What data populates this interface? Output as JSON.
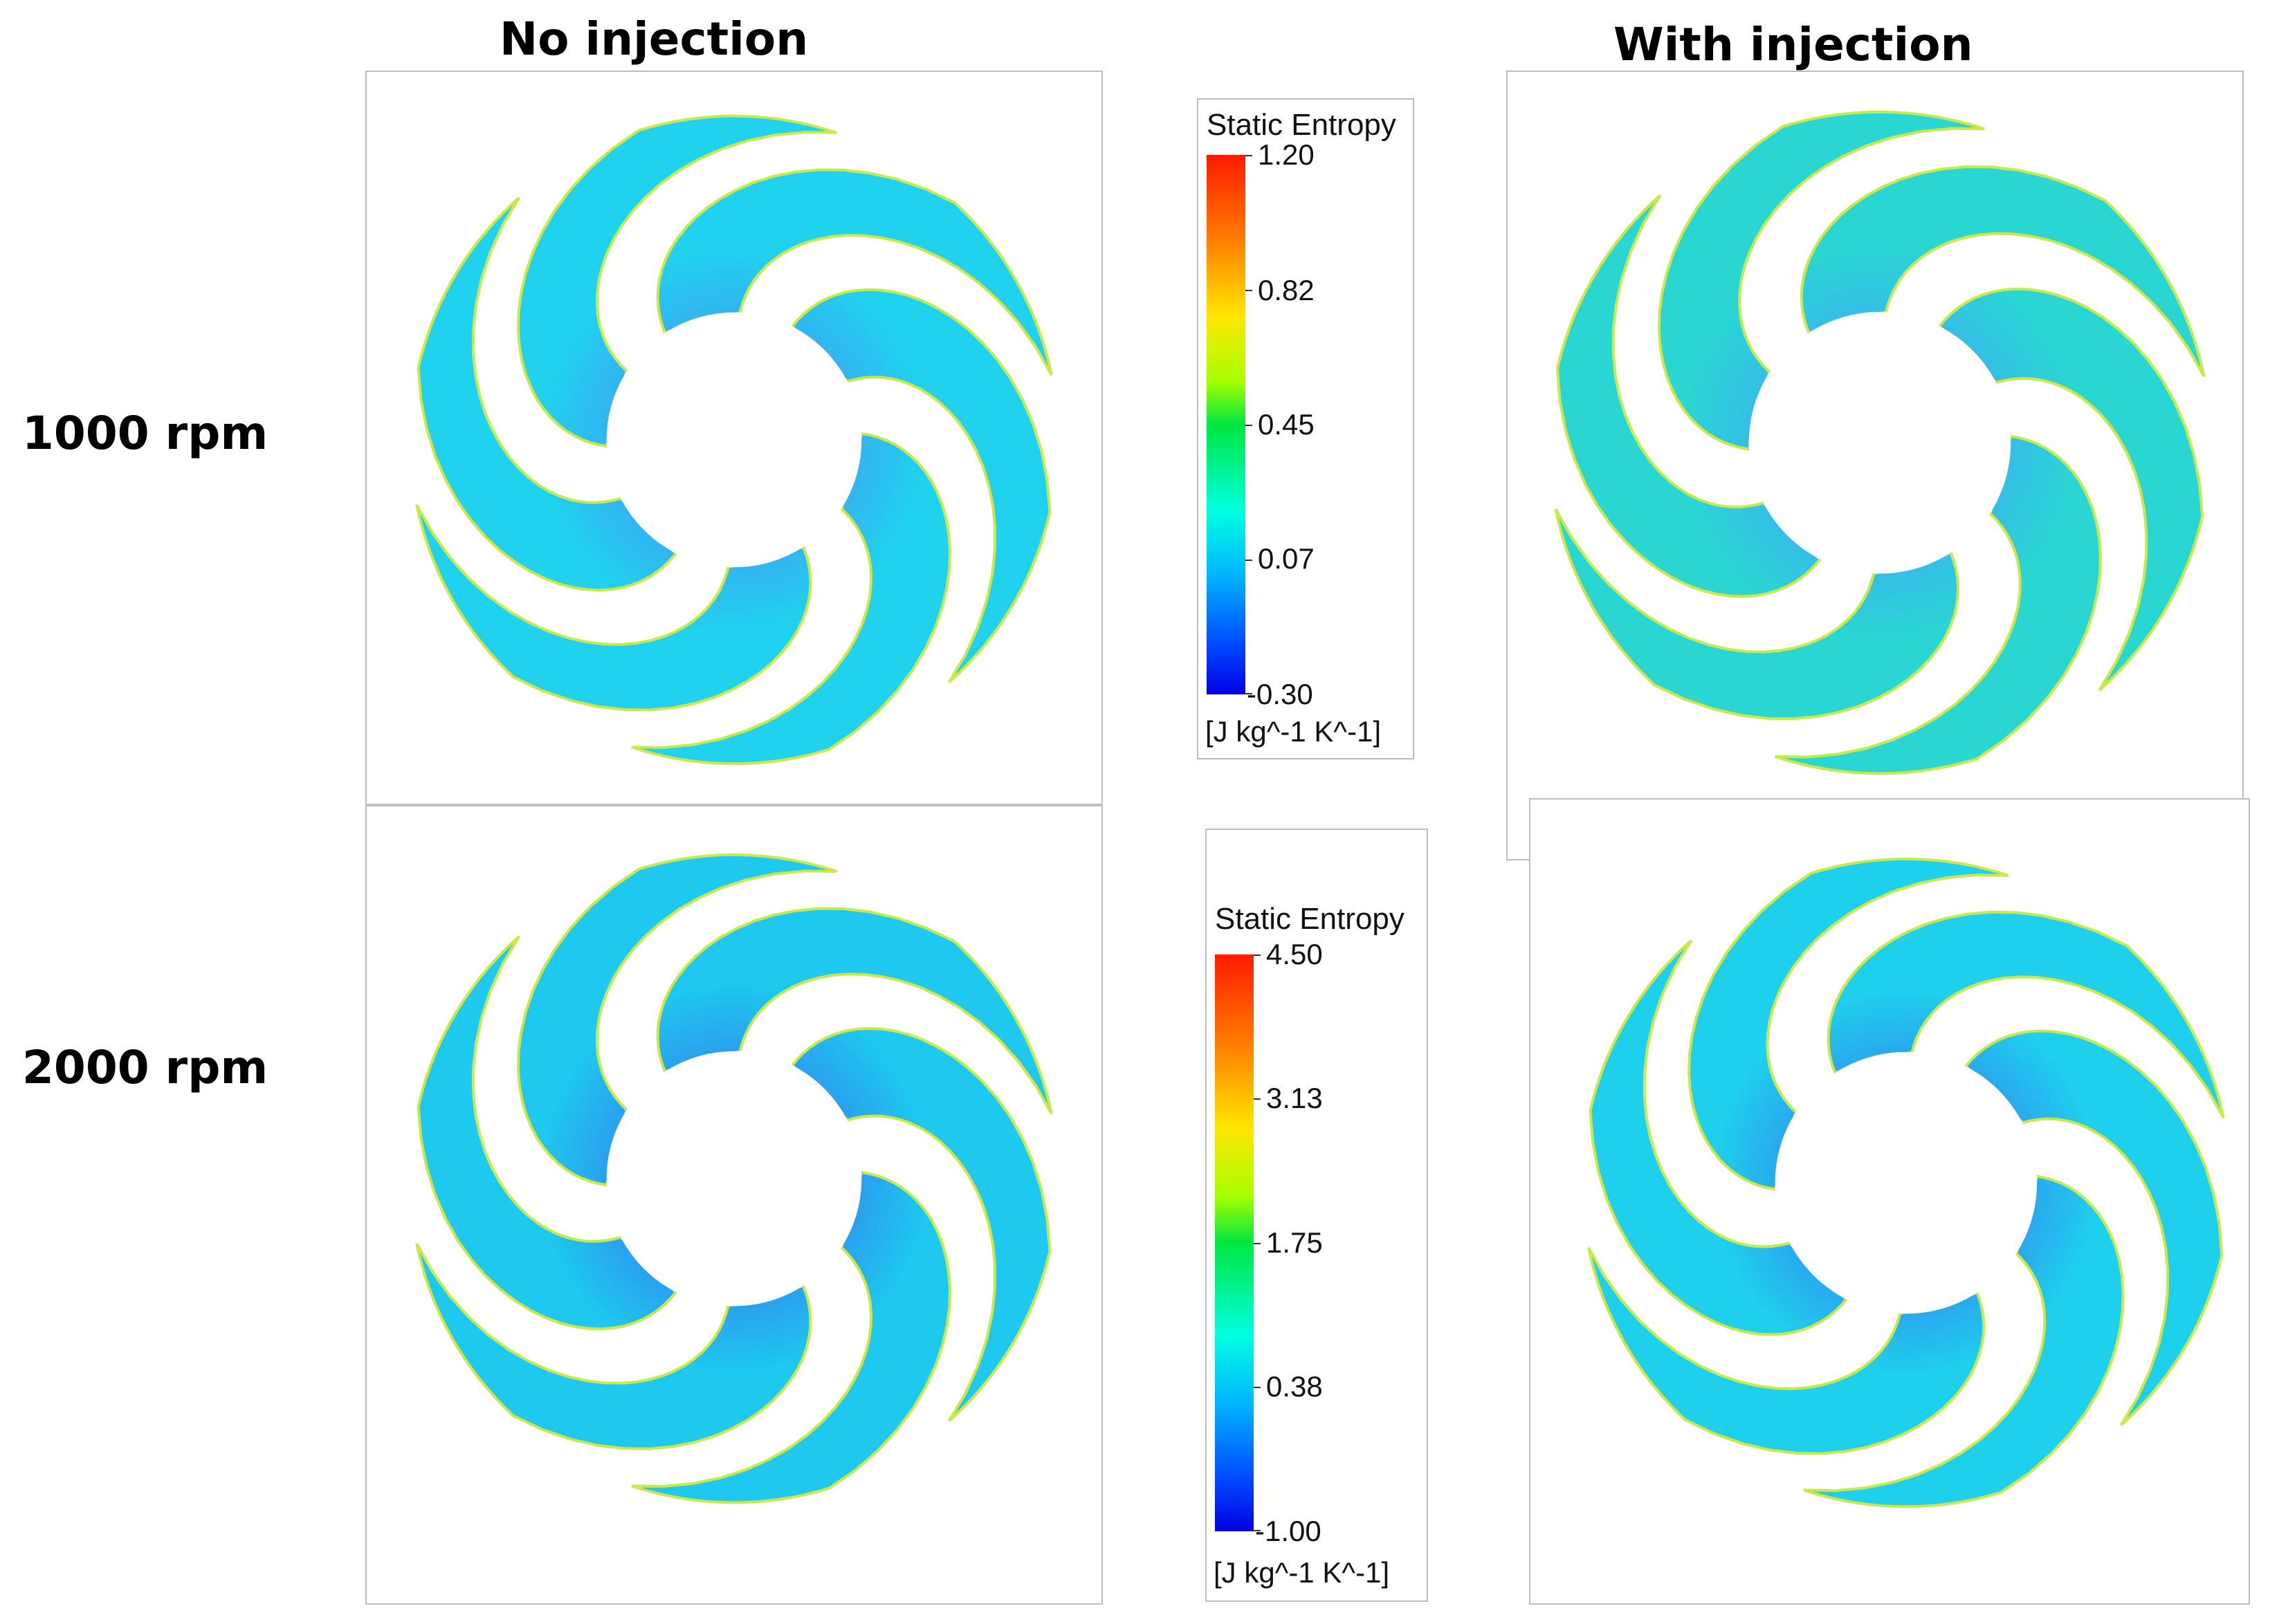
{
  "columns": {
    "no_injection": "No injection",
    "with_injection": "With injection"
  },
  "rows": {
    "rpm_1000": "1000 rpm",
    "rpm_2000": "2000 rpm"
  },
  "legend_1000": {
    "title": "Static Entropy",
    "ticks": [
      "1.20",
      "0.82",
      "0.45",
      "0.07",
      "-0.30"
    ],
    "unit": "[J kg^-1 K^-1]"
  },
  "legend_2000": {
    "title": "Static Entropy",
    "ticks": [
      "4.50",
      "3.13",
      "1.75",
      "0.38",
      "-1.00"
    ],
    "unit": "[J kg^-1 K^-1]"
  },
  "colors": {
    "blade_cyan": "#1fd4ee",
    "blade_blue": "#2aa6f0",
    "blade_green": "#2fe6b8",
    "edge_yellow": "#c8e94a"
  }
}
